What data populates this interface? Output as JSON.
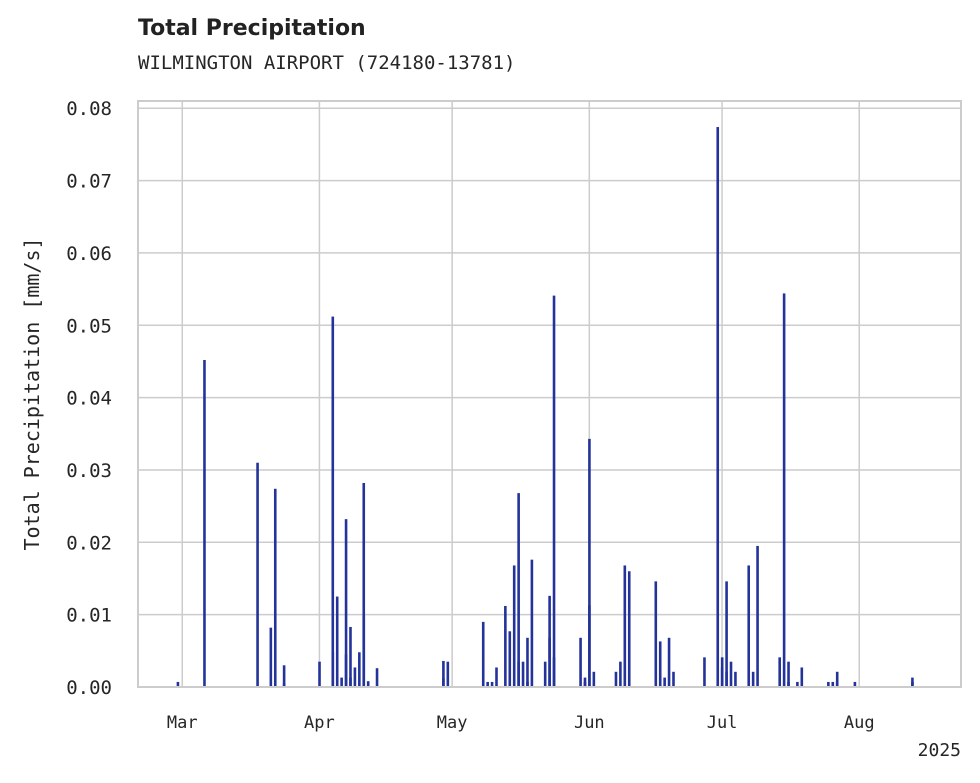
{
  "chart_data": {
    "type": "bar",
    "title": "Total Precipitation",
    "subtitle": "WILMINGTON AIRPORT (724180-13781)",
    "ylabel": "Total Precipitation [mm/s]",
    "xlabel": "",
    "ylim": [
      0,
      0.081
    ],
    "yticks": [
      "0.00",
      "0.01",
      "0.02",
      "0.03",
      "0.04",
      "0.05",
      "0.06",
      "0.07",
      "0.08"
    ],
    "xlim": [
      "2025-02-19",
      "2025-08-24"
    ],
    "xticks": [
      {
        "date": "2025-03-01",
        "label": "Mar"
      },
      {
        "date": "2025-04-01",
        "label": "Apr"
      },
      {
        "date": "2025-05-01",
        "label": "May"
      },
      {
        "date": "2025-06-01",
        "label": "Jun"
      },
      {
        "date": "2025-07-01",
        "label": "Jul"
      },
      {
        "date": "2025-08-01",
        "label": "Aug"
      }
    ],
    "year_label": "2025",
    "grid": true,
    "color": "#23339a",
    "series": [
      {
        "dates": [
          "2025-02-28",
          "2025-03-06",
          "2025-03-18",
          "2025-03-21",
          "2025-03-22",
          "2025-03-24",
          "2025-03-24",
          "2025-04-01",
          "2025-04-04",
          "2025-04-04",
          "2025-04-05",
          "2025-04-06",
          "2025-04-07",
          "2025-04-07",
          "2025-04-08",
          "2025-04-08",
          "2025-04-09",
          "2025-04-10",
          "2025-04-11",
          "2025-04-11",
          "2025-04-12",
          "2025-04-14",
          "2025-04-29",
          "2025-04-29",
          "2025-04-30",
          "2025-05-08",
          "2025-05-09",
          "2025-05-10",
          "2025-05-11",
          "2025-05-13",
          "2025-05-14",
          "2025-05-15",
          "2025-05-16",
          "2025-05-16",
          "2025-05-17",
          "2025-05-18",
          "2025-05-18",
          "2025-05-19",
          "2025-05-22",
          "2025-05-23",
          "2025-05-23",
          "2025-05-24",
          "2025-05-24",
          "2025-05-30",
          "2025-05-31",
          "2025-05-31",
          "2025-06-01",
          "2025-06-01",
          "2025-06-02",
          "2025-06-07",
          "2025-06-08",
          "2025-06-09",
          "2025-06-10",
          "2025-06-16",
          "2025-06-17",
          "2025-06-18",
          "2025-06-19",
          "2025-06-20",
          "2025-06-27",
          "2025-06-30",
          "2025-07-01",
          "2025-07-01",
          "2025-07-02",
          "2025-07-02",
          "2025-07-03",
          "2025-07-04",
          "2025-07-07",
          "2025-07-08",
          "2025-07-09",
          "2025-07-14",
          "2025-07-15",
          "2025-07-16",
          "2025-07-16",
          "2025-07-18",
          "2025-07-19",
          "2025-07-25",
          "2025-07-26",
          "2025-07-27",
          "2025-07-27",
          "2025-07-31",
          "2025-08-13",
          "2025-08-13"
        ],
        "values": [
          0.0007,
          0.0452,
          0.031,
          0.0082,
          0.0274,
          0.003,
          0.0005,
          0.0035,
          0.0048,
          0.0512,
          0.0125,
          0.0013,
          0.0045,
          0.0232,
          0.0013,
          0.0083,
          0.0027,
          0.0048,
          0.0282,
          0.0098,
          0.0008,
          0.0026,
          0.0036,
          0.0012,
          0.0035,
          0.009,
          0.0007,
          0.0007,
          0.0027,
          0.0112,
          0.0077,
          0.0168,
          0.0268,
          0.0035,
          0.0035,
          0.0007,
          0.0068,
          0.0176,
          0.0035,
          0.0126,
          0.0068,
          0.0041,
          0.0541,
          0.0068,
          0.0013,
          0.0007,
          0.0343,
          0.0113,
          0.0021,
          0.0021,
          0.0035,
          0.0168,
          0.016,
          0.0146,
          0.0063,
          0.0013,
          0.0068,
          0.0021,
          0.0041,
          0.0774,
          0.0041,
          0.0027,
          0.0146,
          0.0021,
          0.0035,
          0.0021,
          0.0168,
          0.0021,
          0.0195,
          0.0041,
          0.0544,
          0.0007,
          0.0035,
          0.0007,
          0.0027,
          0.0007,
          0.0007,
          0.0021,
          0.0007,
          0.0007,
          0.0013,
          0.0007
        ]
      }
    ]
  }
}
